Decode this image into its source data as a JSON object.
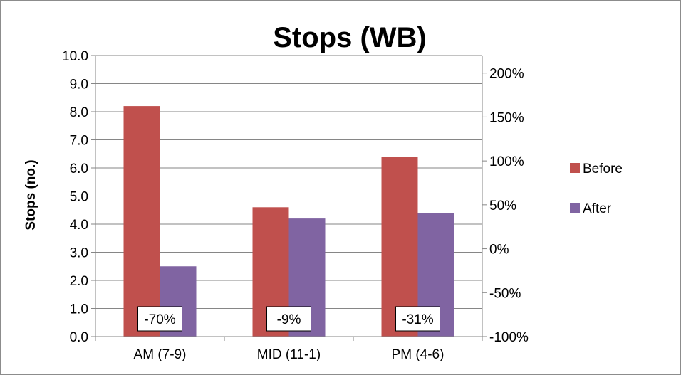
{
  "chart_data": {
    "type": "bar",
    "title": "Stops (WB)",
    "ylabel": "Stops (no.)",
    "xlabel": "",
    "categories": [
      "AM (7-9)",
      "MID (11-1)",
      "PM (4-6)"
    ],
    "series": [
      {
        "name": "Before",
        "values": [
          8.2,
          4.6,
          6.4
        ],
        "color": "#c0504d"
      },
      {
        "name": "After",
        "values": [
          2.5,
          4.2,
          4.4
        ],
        "color": "#8064a2"
      }
    ],
    "ylim": [
      0,
      10
    ],
    "y_ticks": [
      "0.0",
      "1.0",
      "2.0",
      "3.0",
      "4.0",
      "5.0",
      "6.0",
      "7.0",
      "8.0",
      "9.0",
      "10.0"
    ],
    "secondary_axis": {
      "ylim": [
        -100,
        220
      ],
      "ticks": [
        -100,
        -50,
        0,
        50,
        100,
        150,
        200
      ],
      "tick_labels": [
        "-100%",
        "-50%",
        "0%",
        "50%",
        "100%",
        "150%",
        "200%"
      ]
    },
    "percent_change_labels": [
      "-70%",
      "-9%",
      "-31%"
    ],
    "grid": true,
    "legend_position": "right"
  }
}
